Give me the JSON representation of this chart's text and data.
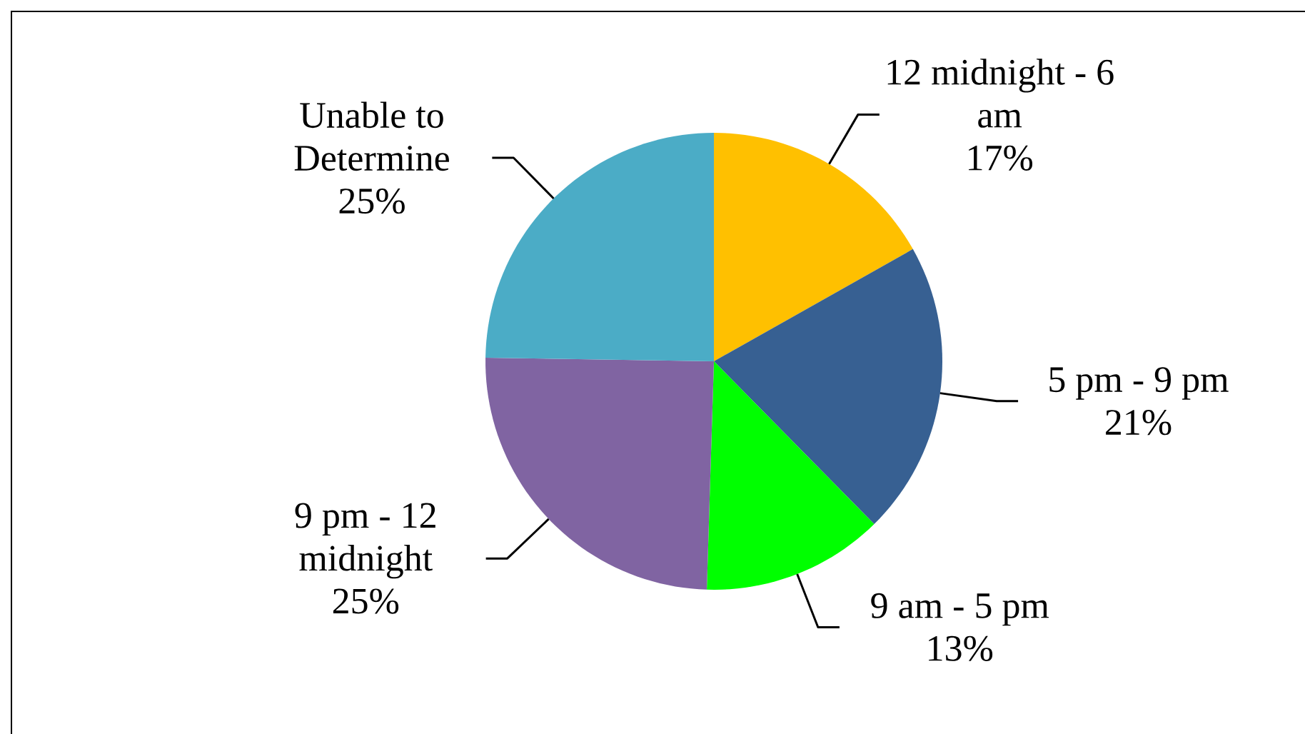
{
  "chart_data": {
    "type": "pie",
    "categories": [
      "12 midnight - 6 am",
      "5 pm - 9 pm",
      "9 am - 5 pm",
      "9 pm - 12 midnight",
      "Unable to Determine"
    ],
    "values": [
      17,
      21,
      13,
      25,
      25
    ],
    "value_labels": [
      "17%",
      "21%",
      "13%",
      "25%",
      "25%"
    ],
    "colors": [
      "#ffc000",
      "#376092",
      "#00ff00",
      "#8064a2",
      "#4bacc6"
    ]
  }
}
